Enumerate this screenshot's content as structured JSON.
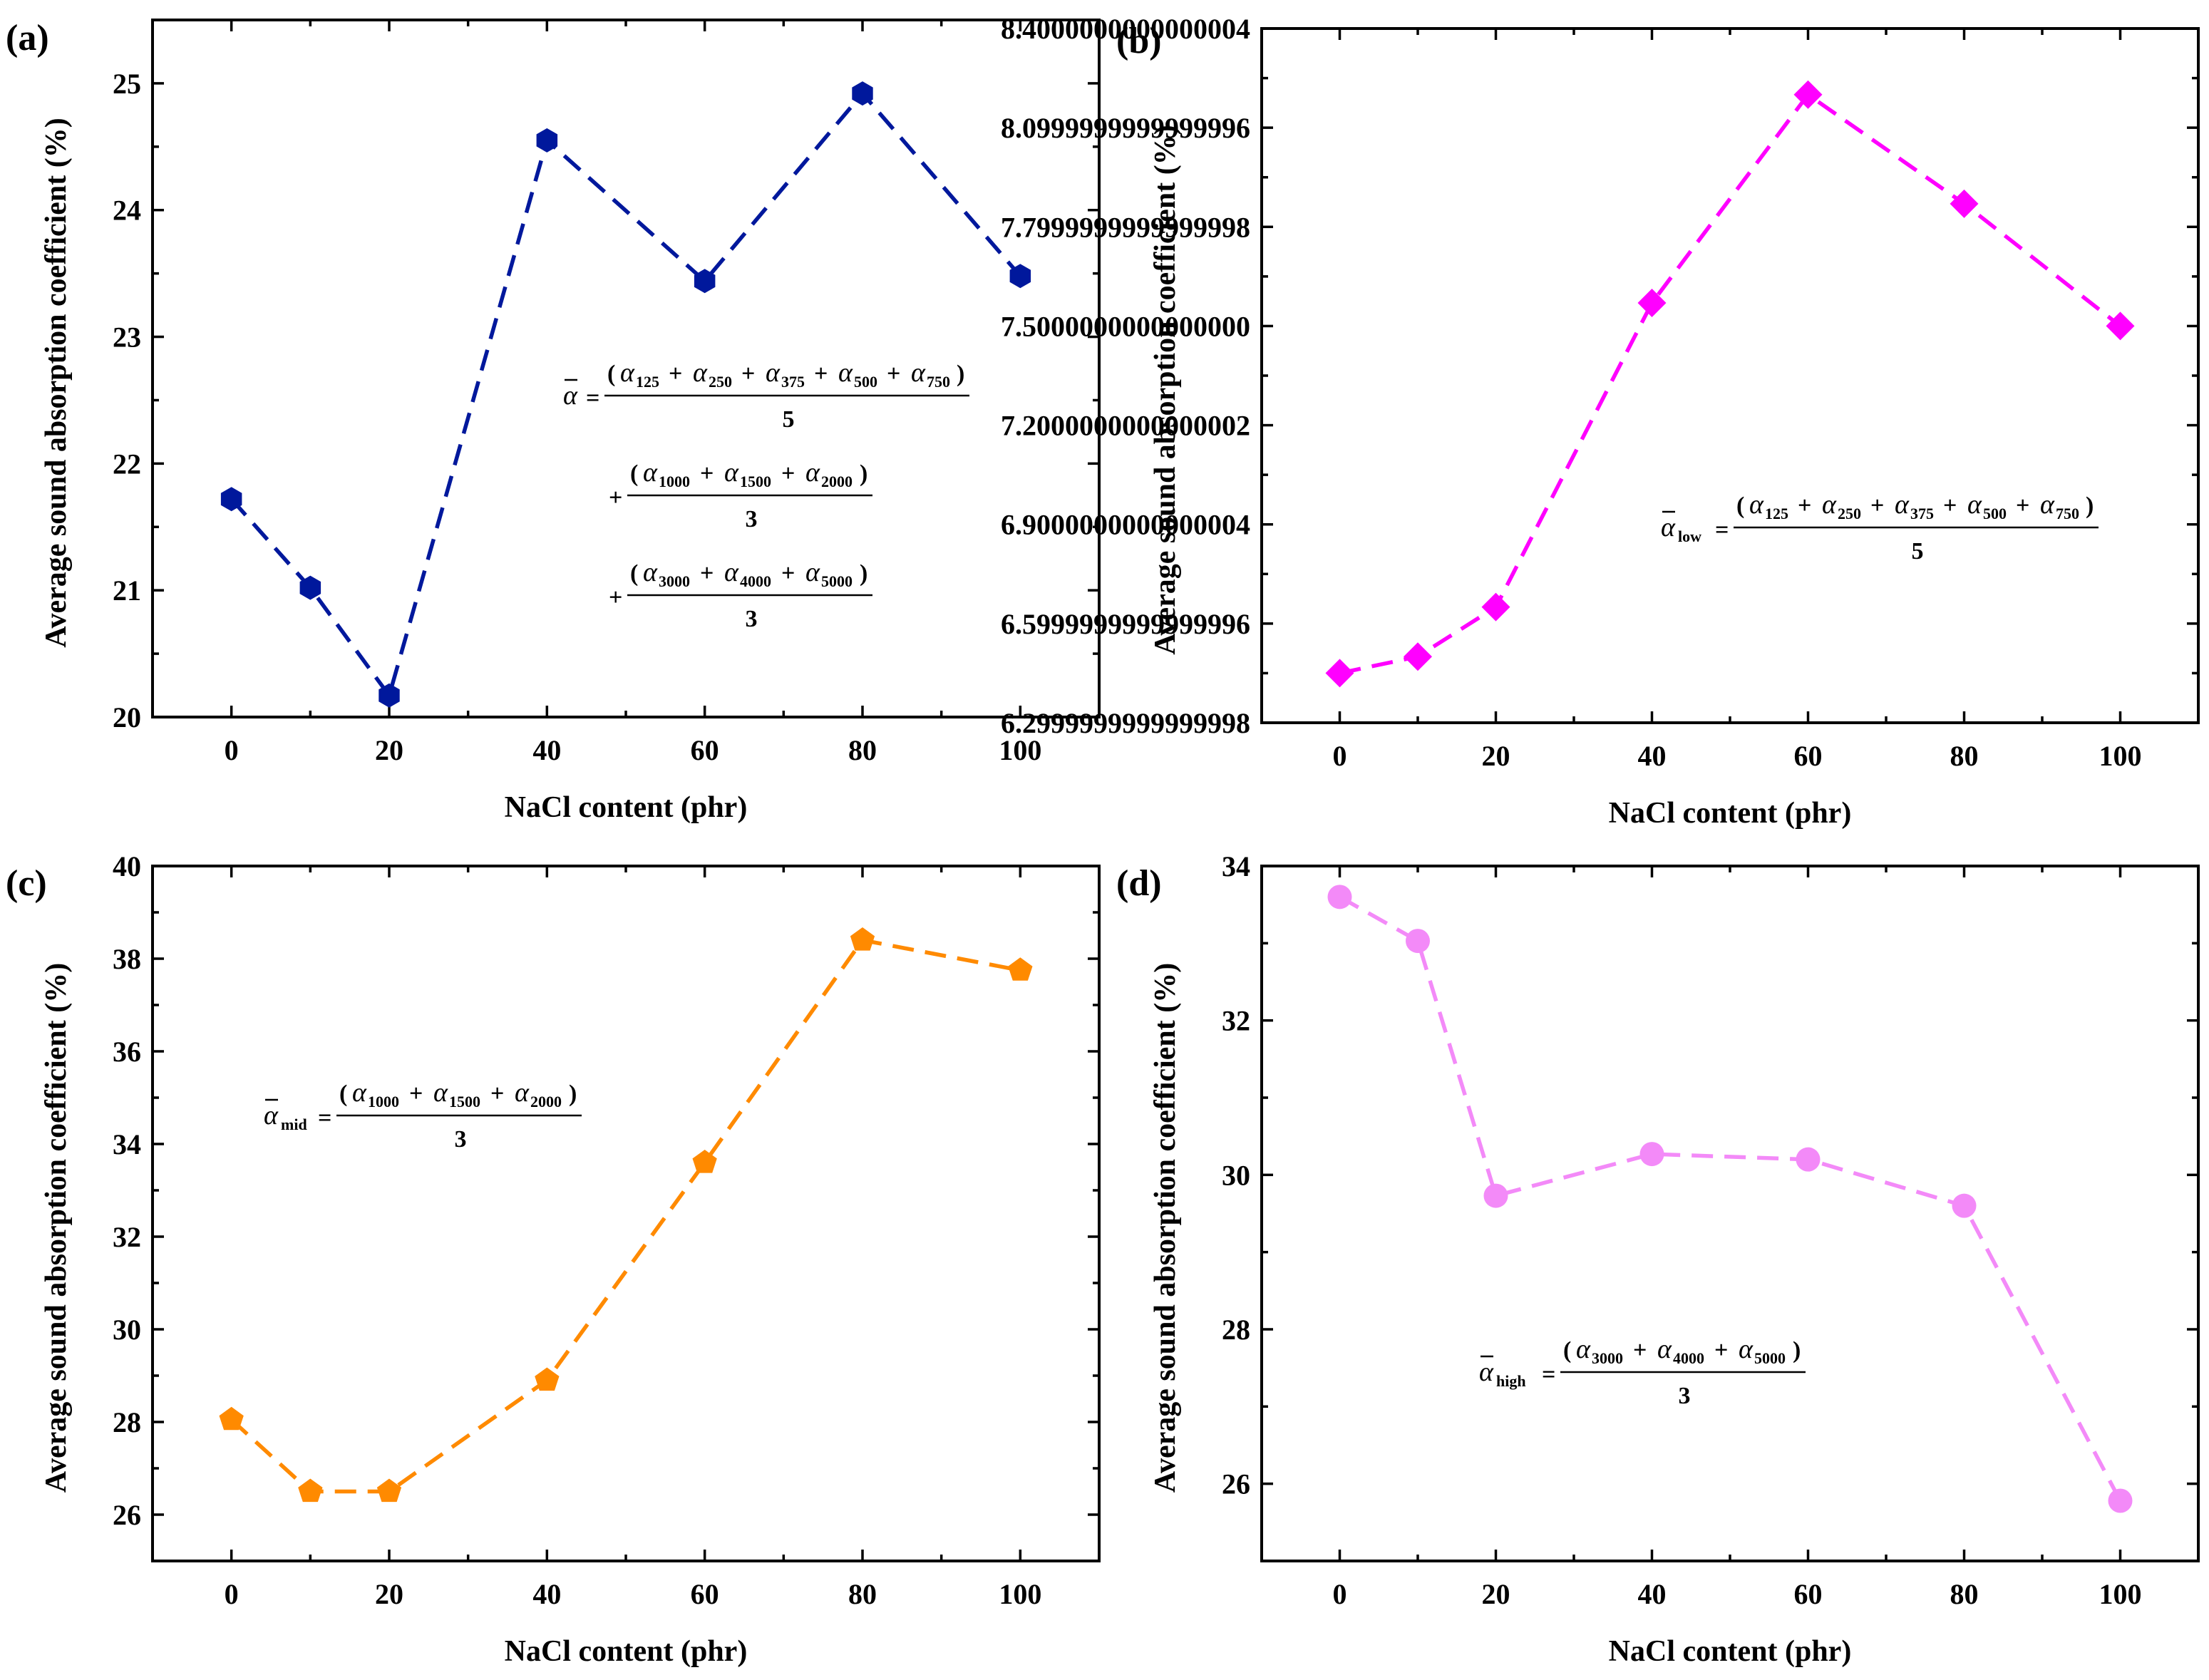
{
  "chart_data": [
    {
      "panel": "(a)",
      "type": "line",
      "xlabel": "NaCl content (phr)",
      "ylabel": "Average sound absorption coefficient (%)",
      "xlim": [
        -10,
        110
      ],
      "ylim": [
        20,
        25.5
      ],
      "xticks": [
        0,
        20,
        40,
        60,
        80,
        100
      ],
      "yticks": [
        20,
        21,
        22,
        23,
        24,
        25
      ],
      "x": [
        0,
        10,
        20,
        40,
        60,
        80,
        100
      ],
      "values": [
        21.72,
        21.02,
        20.17,
        24.55,
        23.44,
        24.92,
        23.48
      ],
      "color": "#00189c",
      "marker": "hexagon",
      "formula": {
        "lhs": "α",
        "lhs_sub": "",
        "rows": [
          {
            "prefix": "=",
            "terms": [
              [
                "α",
                "125"
              ],
              [
                "α",
                "250"
              ],
              [
                "α",
                "375"
              ],
              [
                "α",
                "500"
              ],
              [
                "α",
                "750"
              ]
            ],
            "den": "5"
          },
          {
            "prefix": "+",
            "terms": [
              [
                "α",
                "1000"
              ],
              [
                "α",
                "1500"
              ],
              [
                "α",
                "2000"
              ]
            ],
            "den": "3"
          },
          {
            "prefix": "+",
            "terms": [
              [
                "α",
                "3000"
              ],
              [
                "α",
                "4000"
              ],
              [
                "α",
                "5000"
              ]
            ],
            "den": "3"
          }
        ]
      }
    },
    {
      "panel": "(b)",
      "type": "line",
      "xlabel": "NaCl content (phr)",
      "ylabel": "Average sound absorption coefficient (%)",
      "xlim": [
        -10,
        110
      ],
      "ylim": [
        6.3,
        8.4
      ],
      "xticks": [
        0,
        20,
        40,
        60,
        80,
        100
      ],
      "yticks": [
        6.3,
        6.6,
        6.9,
        7.2,
        7.5,
        7.8,
        8.1,
        8.4
      ],
      "x": [
        0,
        10,
        20,
        40,
        60,
        80,
        100
      ],
      "values": [
        6.45,
        6.5,
        6.65,
        7.57,
        8.2,
        7.87,
        7.5
      ],
      "color": "#ff00ff",
      "marker": "diamond",
      "formula": {
        "lhs": "α",
        "lhs_sub": "low",
        "rows": [
          {
            "prefix": "=",
            "terms": [
              [
                "α",
                "125"
              ],
              [
                "α",
                "250"
              ],
              [
                "α",
                "375"
              ],
              [
                "α",
                "500"
              ],
              [
                "α",
                "750"
              ]
            ],
            "den": "5"
          }
        ]
      }
    },
    {
      "panel": "(c)",
      "type": "line",
      "xlabel": "NaCl content (phr)",
      "ylabel": "Average sound absorption coefficient (%)",
      "xlim": [
        -10,
        110
      ],
      "ylim": [
        25,
        40
      ],
      "xticks": [
        0,
        20,
        40,
        60,
        80,
        100
      ],
      "yticks": [
        26,
        28,
        30,
        32,
        34,
        36,
        38,
        40
      ],
      "x": [
        0,
        10,
        20,
        40,
        60,
        80,
        100
      ],
      "values": [
        28.05,
        26.5,
        26.5,
        28.9,
        33.6,
        38.4,
        37.75
      ],
      "color": "#ff8a00",
      "marker": "pentagon",
      "formula": {
        "lhs": "α",
        "lhs_sub": "mid",
        "rows": [
          {
            "prefix": "=",
            "terms": [
              [
                "α",
                "1000"
              ],
              [
                "α",
                "1500"
              ],
              [
                "α",
                "2000"
              ]
            ],
            "den": "3"
          }
        ]
      }
    },
    {
      "panel": "(d)",
      "type": "line",
      "xlabel": "NaCl content (phr)",
      "ylabel": "Average sound absorption coefficient (%)",
      "xlim": [
        -10,
        110
      ],
      "ylim": [
        25,
        34
      ],
      "xticks": [
        0,
        20,
        40,
        60,
        80,
        100
      ],
      "yticks": [
        26,
        28,
        30,
        32,
        34
      ],
      "x": [
        0,
        10,
        20,
        40,
        60,
        80,
        100
      ],
      "values": [
        33.6,
        33.03,
        29.73,
        30.27,
        30.2,
        29.6,
        25.78
      ],
      "color": "#f38af8",
      "marker": "circle",
      "formula": {
        "lhs": "α",
        "lhs_sub": "high",
        "rows": [
          {
            "prefix": "=",
            "terms": [
              [
                "α",
                "3000"
              ],
              [
                "α",
                "4000"
              ],
              [
                "α",
                "5000"
              ]
            ],
            "den": "3"
          }
        ]
      }
    }
  ]
}
